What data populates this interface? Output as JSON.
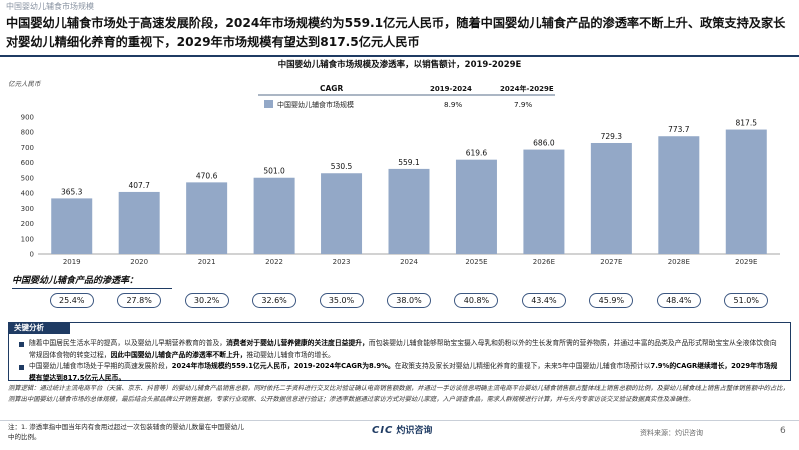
{
  "page": {
    "section_label": "中国婴幼儿辅食市场规模",
    "headline_parts": [
      "中国婴幼儿辅食市场处于高速发展阶段，",
      "2024年市场规模约为559.1亿元人民币",
      "，随着中国婴幼儿辅食产品的渗透率不断上升、政策支持及家长对婴幼儿精细化养育的重视下，",
      "2029年市场规模有望达到817.5亿元人民币"
    ]
  },
  "chart_data": {
    "type": "bar",
    "title": "中国婴幼儿辅食市场规模及渗透率，以销售额计，2019-2029E",
    "unit_label": "亿元人民币",
    "categories": [
      "2019",
      "2020",
      "2021",
      "2022",
      "2023",
      "2024",
      "2025E",
      "2026E",
      "2027E",
      "2028E",
      "2029E"
    ],
    "series": [
      {
        "name": "中国婴幼儿辅食市场规模",
        "values": [
          365.3,
          407.7,
          470.6,
          501.0,
          530.5,
          559.1,
          619.6,
          686.0,
          729.3,
          773.7,
          817.5
        ],
        "color": "#93a8c7"
      }
    ],
    "value_labels": [
      "365.3",
      "407.7",
      "470.6",
      "501.0",
      "530.5",
      "559.1",
      "619.6",
      "686.0",
      "729.3",
      "773.7",
      "817.5"
    ],
    "ylim": [
      0,
      900
    ],
    "yticks": [
      "0",
      "100",
      "200",
      "300",
      "400",
      "500",
      "600",
      "700",
      "800",
      "900"
    ],
    "grid": false,
    "legend_position": "top-left",
    "cagr_table": {
      "header": [
        "CAGR",
        "2019-2024",
        "2024年-2029E"
      ],
      "row": [
        "中国婴幼儿辅食市场规模",
        "8.9%",
        "7.9%"
      ]
    },
    "penetration": {
      "label": "中国婴幼儿辅食产品的渗透率：",
      "values": [
        "25.4%",
        "27.8%",
        "30.2%",
        "32.6%",
        "35.0%",
        "38.0%",
        "40.8%",
        "43.4%",
        "45.9%",
        "48.4%",
        "51.0%"
      ]
    }
  },
  "analysis": {
    "tab": "关键分析",
    "bullets": [
      {
        "plain1": "随着中国居民生活水平的提高，以及婴幼儿早期营养教育的普及，",
        "bold": "消费者对于婴幼儿营养健康的关注度日益提升，",
        "plain2": "而包装婴幼儿辅食能够帮助宝宝摄入母乳和奶粉以外的生长发育所需的营养物质，并通过丰富的品类及产品形式帮助宝宝从全液体饮食向常规固体食物的转变过程，",
        "bold2": "因此中国婴幼儿辅食产品的渗透率不断上升，",
        "plain3": "推动婴幼儿辅食市场的增长。"
      },
      {
        "plain1": "中国婴幼儿辅食市场处于早期的高速发展阶段，",
        "bold": "2024年市场规模约559.1亿元人民币，2019-2024年CAGR为8.9%。",
        "plain2": "在政策支持及家长对婴幼儿精细化养育的重视下，未来5年中国婴幼儿辅食市场预计以",
        "bold2": "7.9%的CAGR继续增长，2029年市场规模有望达到817.5亿元人民币。",
        "plain3": ""
      }
    ]
  },
  "methodology": "测算逻辑：通过统计主流电商平台（天猫、京东、抖音等）的婴幼儿辅食产品销售总额，同时依托二手资料进行交叉比对验证确认电商销售额数据，并通过一手访谈信息明确主流电商平台婴幼儿辅食销售额占整体线上销售总额的比例，及婴幼儿辅食线上销售占整体销售额中的占比，测算出中国婴幼儿辅食市场的总体规模，最后结合头部品牌公开销售数据，专家行业观察、公开数据信息进行验证；渗透率数据通过家访方式对婴幼儿家庭，入户调查食品，需求人群规模进行计算，并与头内专家访谈交叉验证数据真实性及准确性。",
  "footer": {
    "note_line1": "注：1. 渗透率指中国当年内有食用过超过一次包装辅食的婴幼儿数量在中国婴幼儿",
    "note_line2": "中的比例。",
    "logo_text": "CIC",
    "logo_cn": "灼识咨询",
    "source": "资料来源：灼识咨询",
    "page_number": "6"
  }
}
